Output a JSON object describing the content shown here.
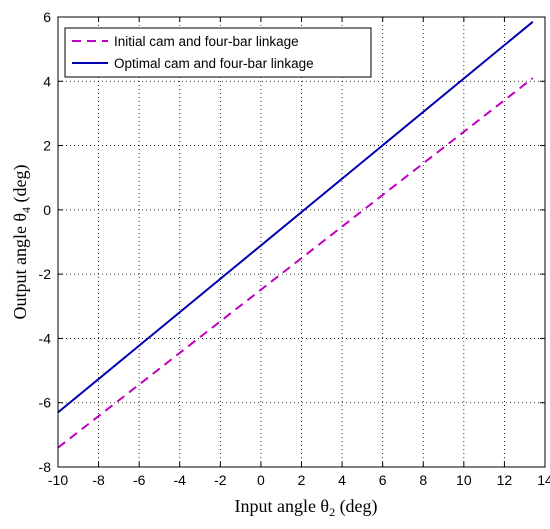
{
  "chart_data": {
    "type": "line",
    "xlabel_main": "Input angle θ",
    "xlabel_sub": "2",
    "xlabel_unit": " (deg)",
    "ylabel_main": "Output angle θ",
    "ylabel_sub": "4",
    "ylabel_unit": " (deg)",
    "xlim": [
      -10,
      14
    ],
    "ylim": [
      -8,
      6
    ],
    "xticks": [
      -10,
      -8,
      -6,
      -4,
      -2,
      0,
      2,
      4,
      6,
      8,
      10,
      12,
      14
    ],
    "yticks": [
      -8,
      -6,
      -4,
      -2,
      0,
      2,
      4,
      6
    ],
    "grid": true,
    "legend_position": "top-left",
    "series": [
      {
        "name": "Initial cam and four-bar linkage",
        "color": "#c000c0",
        "dash": "dashed",
        "x": [
          -10,
          13.4
        ],
        "y": [
          -7.4,
          4.1
        ]
      },
      {
        "name": "Optimal cam and four-bar linkage",
        "color": "#0000b0",
        "dash": "solid",
        "x": [
          -10,
          13.4
        ],
        "y": [
          -6.3,
          5.85
        ]
      }
    ]
  }
}
